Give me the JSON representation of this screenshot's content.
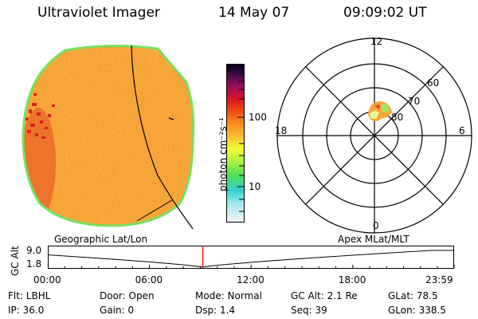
{
  "header": {
    "title": "Ultraviolet Imager",
    "date": "14 May 07",
    "time": "09:09:02 UT"
  },
  "colorbar": {
    "unit_label": "photon cm⁻²s⁻¹",
    "tick_100": "100",
    "tick_10": "10"
  },
  "polar": {
    "mlt_top": "12",
    "mlt_bottom": "0",
    "mlt_left": "18",
    "mlt_right": "6",
    "lat_60": "60",
    "lat_70": "70",
    "lat_80": "80"
  },
  "timeline": {
    "left_label": "Geographic Lat/Lon",
    "right_label": "Apex MLat/MLT",
    "axis_label": "GC Alt",
    "ytick_top": "9.0",
    "ytick_bottom": "1.8",
    "xticks": [
      "00:00",
      "06:00",
      "12:00",
      "18:00",
      "23:59"
    ],
    "current_hour": 9.15
  },
  "footer": {
    "flt": "Flt: LBHL",
    "ip": "IP: 36.0",
    "door": "Door: Open",
    "gain": "Gain:  0",
    "mode": "Mode: Normal",
    "dsp": "Dsp:    1.4",
    "gcalt": "GC Alt: 2.1 Re",
    "seq": "Seq: 39",
    "glat": "GLat:  78.5",
    "glon": "GLon: 338.5"
  },
  "colors": {
    "disk_base": "#f7a838",
    "rim": "#77e060",
    "cap": "#e8ff9a",
    "hot": "#e02020",
    "marker": "#e00000"
  }
}
